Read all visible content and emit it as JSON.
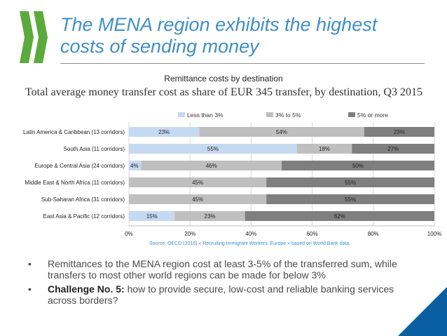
{
  "slide": {
    "title_line1": "The MENA region exhibits the highest",
    "title_line2": "costs of sending money",
    "caption": "Remittance costs by destination",
    "source": "Source: OECD (2016) « Recruiting Immigrant Workers: Europe » based on World Bank data.",
    "bullets": [
      {
        "bold": "",
        "text": "Remittances to the MENA region cost at least 3-5% of the transferred sum, while transfers to most other world regions can be made for below 3%"
      },
      {
        "bold": "Challenge No. 5:",
        "text": " how to provide secure, low-cost and reliable banking services across borders?"
      }
    ],
    "colors": {
      "accent": "#3f8fc7",
      "logo": "#5aaa3c",
      "corner": "#0a5fa3"
    }
  },
  "chart_data": {
    "type": "bar",
    "orientation": "horizontal",
    "stacked": true,
    "title": "Total average money transfer cost as share of EUR 345 transfer, by destination, Q3 2015",
    "categories": [
      "Latin America & Caribbean (13 corridors)",
      "South Asia (11 corridors)",
      "Europe & Central Asia (24 corridors)",
      "Middle East & North Africa (11 corridors)",
      "Sub-Saharan Africa (31 corridors)",
      "East Asia & Pacific (12 corridors)"
    ],
    "series": [
      {
        "name": "Less than 3%",
        "color": "#c5d9f1",
        "values": [
          23,
          55,
          4,
          0,
          0,
          15
        ]
      },
      {
        "name": "3% to 5%",
        "color": "#bfbfbf",
        "values": [
          54,
          18,
          46,
          45,
          45,
          23
        ]
      },
      {
        "name": "5% or more",
        "color": "#7f7f7f",
        "values": [
          23,
          27,
          50,
          55,
          55,
          62
        ]
      }
    ],
    "xlim": [
      0,
      100
    ],
    "xticks": [
      "0%",
      "20%",
      "40%",
      "60%",
      "80%",
      "100%"
    ],
    "legend": "top"
  }
}
